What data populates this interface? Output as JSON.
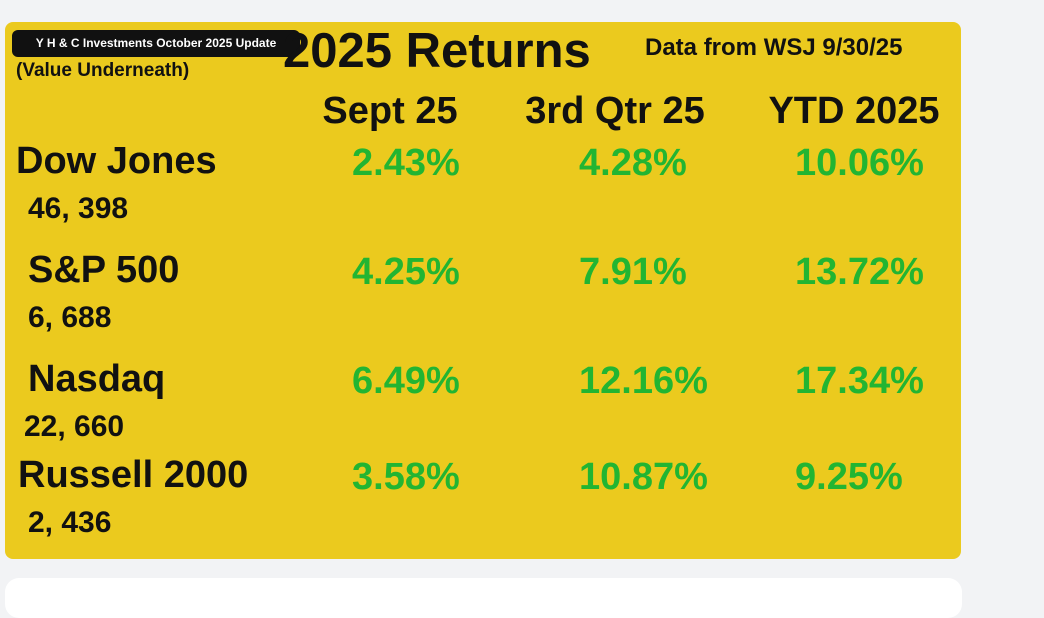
{
  "header": {
    "badge": "Y H & C Investments October 2025 Update",
    "subtitle": "(Value Underneath)",
    "title": "2025 Returns",
    "source": "Data from WSJ 9/30/25"
  },
  "table": {
    "columns": [
      "Sept 25",
      "3rd Qtr 25",
      "YTD 2025"
    ],
    "rows": [
      {
        "name": "Dow Jones",
        "value": "46, 398",
        "returns": [
          "2.43%",
          "4.28%",
          "10.06%"
        ]
      },
      {
        "name": "S&P 500",
        "value": "6, 688",
        "returns": [
          "4.25%",
          "7.91%",
          "13.72%"
        ]
      },
      {
        "name": "Nasdaq",
        "value": "22, 660",
        "returns": [
          "6.49%",
          "12.16%",
          "17.34%"
        ]
      },
      {
        "name": "Russell 2000",
        "value": "2, 436",
        "returns": [
          "3.58%",
          "10.87%",
          "9.25%"
        ]
      }
    ]
  }
}
